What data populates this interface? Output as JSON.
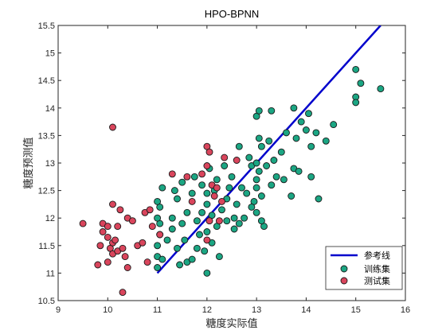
{
  "chart_data": {
    "type": "scatter",
    "title": "HPO-BPNN",
    "xlabel": "糖度实际值",
    "ylabel": "糖度预测值",
    "xlim": [
      9,
      16
    ],
    "ylim": [
      10.5,
      15.5
    ],
    "xticks": [
      "9",
      "10",
      "11",
      "12",
      "13",
      "14",
      "15",
      "16"
    ],
    "yticks": [
      "10.5",
      "11",
      "11.5",
      "12",
      "12.5",
      "13",
      "13.5",
      "14",
      "14.5",
      "15",
      "15.5"
    ],
    "grid": false,
    "legend_position": "bottom-right",
    "reference_line": {
      "name": "参考线",
      "color": "#0000cc",
      "points": [
        [
          11,
          11
        ],
        [
          15.5,
          15.5
        ]
      ]
    },
    "series": [
      {
        "name": "训练集",
        "color": "#1ba683",
        "points": [
          [
            11.0,
            11.1
          ],
          [
            11.0,
            11.3
          ],
          [
            11.0,
            11.5
          ],
          [
            11.05,
            11.7
          ],
          [
            11.05,
            11.9
          ],
          [
            11.0,
            12.0
          ],
          [
            11.05,
            12.2
          ],
          [
            11.0,
            12.3
          ],
          [
            11.1,
            11.25
          ],
          [
            11.1,
            12.55
          ],
          [
            11.2,
            11.6
          ],
          [
            11.3,
            11.8
          ],
          [
            11.3,
            12.0
          ],
          [
            11.35,
            12.5
          ],
          [
            11.4,
            11.45
          ],
          [
            11.4,
            12.35
          ],
          [
            11.5,
            11.9
          ],
          [
            11.5,
            12.65
          ],
          [
            11.55,
            11.6
          ],
          [
            11.6,
            11.2
          ],
          [
            11.6,
            12.1
          ],
          [
            11.7,
            11.25
          ],
          [
            11.7,
            12.45
          ],
          [
            11.8,
            11.95
          ],
          [
            11.85,
            11.7
          ],
          [
            11.9,
            12.6
          ],
          [
            11.9,
            12.1
          ],
          [
            11.95,
            11.4
          ],
          [
            12.0,
            11.75
          ],
          [
            12.0,
            12.25
          ],
          [
            12.05,
            12.9
          ],
          [
            12.1,
            11.55
          ],
          [
            12.1,
            12.05
          ],
          [
            12.15,
            12.5
          ],
          [
            12.2,
            11.85
          ],
          [
            12.2,
            12.7
          ],
          [
            12.25,
            11.3
          ],
          [
            12.3,
            12.15
          ],
          [
            12.35,
            12.95
          ],
          [
            12.4,
            12.35
          ],
          [
            12.4,
            11.95
          ],
          [
            12.5,
            12.75
          ],
          [
            12.55,
            12.0
          ],
          [
            12.6,
            12.25
          ],
          [
            12.65,
            13.3
          ],
          [
            12.7,
            12.55
          ],
          [
            12.75,
            12.0
          ],
          [
            12.8,
            12.45
          ],
          [
            12.85,
            13.1
          ],
          [
            12.9,
            12.95
          ],
          [
            12.95,
            12.3
          ],
          [
            13.0,
            12.7
          ],
          [
            13.0,
            13.0
          ],
          [
            13.0,
            12.55
          ],
          [
            13.05,
            13.45
          ],
          [
            13.05,
            12.85
          ],
          [
            13.0,
            12.1
          ],
          [
            13.1,
            12.4
          ],
          [
            13.1,
            13.3
          ],
          [
            13.15,
            11.85
          ],
          [
            13.0,
            13.85
          ],
          [
            13.05,
            13.95
          ],
          [
            13.2,
            12.95
          ],
          [
            13.25,
            13.4
          ],
          [
            13.3,
            12.6
          ],
          [
            13.35,
            13.05
          ],
          [
            13.4,
            12.75
          ],
          [
            13.5,
            13.2
          ],
          [
            13.55,
            12.7
          ],
          [
            13.6,
            13.55
          ],
          [
            13.7,
            12.4
          ],
          [
            13.75,
            12.9
          ],
          [
            13.8,
            13.45
          ],
          [
            13.85,
            12.85
          ],
          [
            13.9,
            13.75
          ],
          [
            14.0,
            13.6
          ],
          [
            14.1,
            13.3
          ],
          [
            14.1,
            12.75
          ],
          [
            14.2,
            13.55
          ],
          [
            14.25,
            12.35
          ],
          [
            14.4,
            13.4
          ],
          [
            14.55,
            13.7
          ],
          [
            14.05,
            13.9
          ],
          [
            13.75,
            14.0
          ],
          [
            13.3,
            13.95
          ],
          [
            15.0,
            14.2
          ],
          [
            15.0,
            14.1
          ],
          [
            15.0,
            14.7
          ],
          [
            15.1,
            14.45
          ],
          [
            15.5,
            14.35
          ],
          [
            12.55,
            11.8
          ],
          [
            12.65,
            11.9
          ],
          [
            12.9,
            12.2
          ],
          [
            13.1,
            11.95
          ],
          [
            12.45,
            12.55
          ],
          [
            11.75,
            12.75
          ],
          [
            12.0,
            12.45
          ],
          [
            11.8,
            11.45
          ],
          [
            11.45,
            11.15
          ],
          [
            12.0,
            11.0
          ]
        ]
      },
      {
        "name": "测试集",
        "color": "#d9455c",
        "points": [
          [
            9.5,
            11.9
          ],
          [
            9.8,
            11.15
          ],
          [
            9.85,
            11.5
          ],
          [
            9.9,
            11.9
          ],
          [
            9.9,
            11.75
          ],
          [
            10.0,
            11.65
          ],
          [
            10.0,
            11.2
          ],
          [
            10.0,
            11.85
          ],
          [
            10.05,
            11.45
          ],
          [
            10.1,
            12.25
          ],
          [
            10.1,
            11.55
          ],
          [
            10.1,
            11.35
          ],
          [
            10.15,
            11.6
          ],
          [
            10.2,
            11.4
          ],
          [
            10.2,
            11.85
          ],
          [
            10.25,
            12.15
          ],
          [
            10.3,
            10.65
          ],
          [
            10.3,
            11.45
          ],
          [
            10.35,
            11.3
          ],
          [
            10.4,
            11.1
          ],
          [
            10.4,
            12.0
          ],
          [
            10.5,
            11.95
          ],
          [
            10.6,
            11.5
          ],
          [
            10.7,
            11.55
          ],
          [
            10.75,
            12.1
          ],
          [
            10.85,
            12.15
          ],
          [
            10.8,
            11.2
          ],
          [
            10.9,
            11.85
          ],
          [
            10.1,
            13.65
          ],
          [
            11.3,
            12.8
          ],
          [
            11.6,
            12.75
          ],
          [
            11.7,
            12.3
          ],
          [
            11.9,
            12.8
          ],
          [
            12.0,
            12.95
          ],
          [
            12.0,
            13.3
          ],
          [
            12.05,
            13.2
          ],
          [
            12.1,
            12.6
          ],
          [
            12.15,
            12.4
          ],
          [
            12.2,
            12.55
          ],
          [
            12.3,
            12.3
          ],
          [
            12.25,
            11.95
          ],
          [
            12.0,
            11.6
          ],
          [
            12.05,
            11.95
          ],
          [
            12.35,
            13.1
          ],
          [
            12.6,
            13.05
          ],
          [
            11.05,
            11.7
          ]
        ]
      }
    ]
  }
}
